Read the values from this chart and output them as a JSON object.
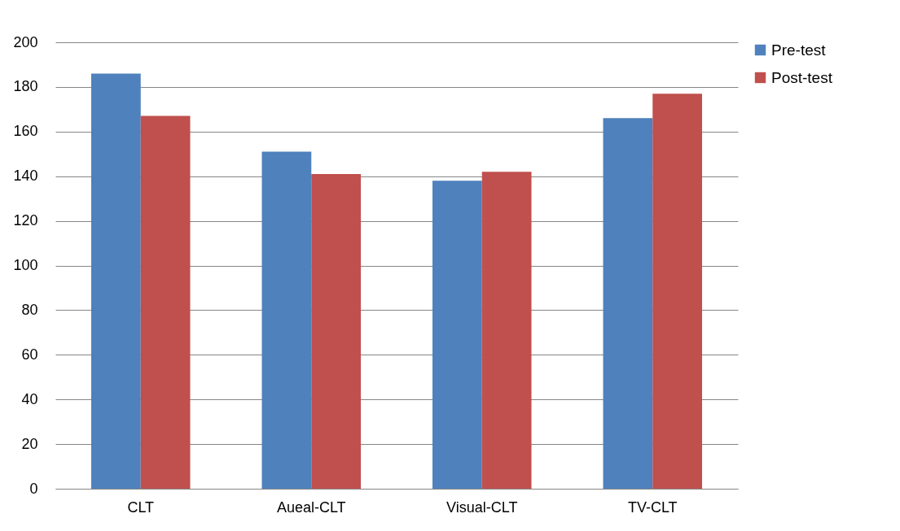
{
  "chart_data": {
    "type": "bar",
    "categories": [
      "CLT",
      "Aueal-CLT",
      "Visual-CLT",
      "TV-CLT"
    ],
    "series": [
      {
        "name": "Pre-test",
        "color": "#4f81bd",
        "values": [
          186,
          151,
          138,
          166
        ]
      },
      {
        "name": "Post-test",
        "color": "#c0504d",
        "values": [
          167,
          141,
          142,
          177
        ]
      }
    ],
    "ylim": [
      0,
      200
    ],
    "yticks": [
      0,
      20,
      40,
      60,
      80,
      100,
      120,
      140,
      160,
      180,
      200
    ],
    "grid": "y",
    "legend": "right"
  }
}
